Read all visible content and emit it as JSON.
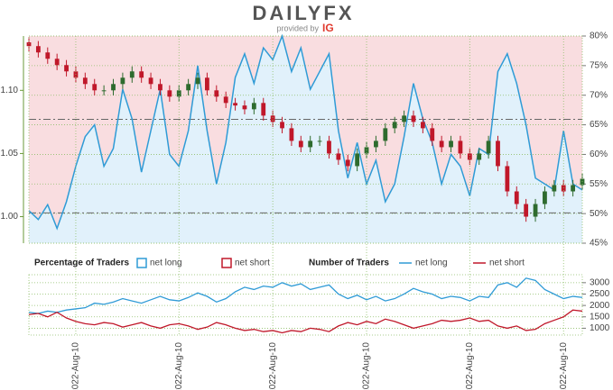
{
  "header": {
    "brand": "DAILYFX",
    "provided_by": "provided by",
    "ig": "IG"
  },
  "chart_data": [
    {
      "type": "candlestick",
      "x": [
        0,
        1,
        2,
        3,
        4,
        5,
        6,
        7,
        8,
        9,
        10,
        11,
        12,
        13,
        14,
        15,
        16,
        17,
        18,
        19,
        20,
        21,
        22,
        23,
        24,
        25,
        26,
        27,
        28,
        29,
        30,
        31,
        32,
        33,
        34,
        35,
        36,
        37,
        38,
        39,
        40,
        41,
        42,
        43,
        44,
        45,
        46,
        47,
        48,
        49,
        50,
        51,
        52,
        53,
        54,
        55,
        56,
        57,
        58,
        59
      ],
      "xlim": [
        0,
        59
      ],
      "ohlc": {
        "open": [
          1.138,
          1.135,
          1.13,
          1.125,
          1.12,
          1.115,
          1.11,
          1.105,
          1.1,
          1.1,
          1.105,
          1.11,
          1.115,
          1.11,
          1.105,
          1.1,
          1.095,
          1.1,
          1.105,
          1.11,
          1.1,
          1.095,
          1.09,
          1.088,
          1.085,
          1.09,
          1.08,
          1.075,
          1.07,
          1.06,
          1.055,
          1.06,
          1.06,
          1.05,
          1.045,
          1.04,
          1.05,
          1.055,
          1.06,
          1.07,
          1.075,
          1.08,
          1.075,
          1.07,
          1.06,
          1.055,
          1.06,
          1.05,
          1.045,
          1.05,
          1.06,
          1.04,
          1.02,
          1.01,
          1.0,
          1.01,
          1.02,
          1.025,
          1.02,
          1.025
        ],
        "high": [
          1.142,
          1.139,
          1.134,
          1.129,
          1.124,
          1.119,
          1.114,
          1.109,
          1.104,
          1.109,
          1.114,
          1.119,
          1.119,
          1.114,
          1.109,
          1.104,
          1.104,
          1.109,
          1.114,
          1.114,
          1.104,
          1.099,
          1.094,
          1.092,
          1.094,
          1.094,
          1.084,
          1.079,
          1.074,
          1.064,
          1.064,
          1.064,
          1.064,
          1.054,
          1.049,
          1.054,
          1.059,
          1.064,
          1.074,
          1.079,
          1.084,
          1.084,
          1.079,
          1.074,
          1.064,
          1.064,
          1.064,
          1.054,
          1.054,
          1.064,
          1.064,
          1.044,
          1.024,
          1.014,
          1.014,
          1.024,
          1.029,
          1.029,
          1.029,
          1.034
        ],
        "low": [
          1.131,
          1.126,
          1.121,
          1.116,
          1.111,
          1.106,
          1.101,
          1.096,
          1.096,
          1.096,
          1.101,
          1.106,
          1.106,
          1.101,
          1.096,
          1.091,
          1.091,
          1.096,
          1.101,
          1.096,
          1.091,
          1.086,
          1.084,
          1.081,
          1.081,
          1.076,
          1.071,
          1.066,
          1.056,
          1.051,
          1.051,
          1.056,
          1.046,
          1.041,
          1.036,
          1.036,
          1.046,
          1.051,
          1.056,
          1.066,
          1.071,
          1.071,
          1.066,
          1.056,
          1.051,
          1.051,
          1.046,
          1.041,
          1.041,
          1.046,
          1.036,
          1.016,
          1.006,
          0.996,
          0.996,
          1.006,
          1.016,
          1.016,
          1.016,
          1.021
        ],
        "close": [
          1.135,
          1.13,
          1.125,
          1.12,
          1.115,
          1.11,
          1.105,
          1.1,
          1.1,
          1.105,
          1.11,
          1.115,
          1.11,
          1.105,
          1.1,
          1.095,
          1.1,
          1.105,
          1.11,
          1.1,
          1.095,
          1.09,
          1.088,
          1.085,
          1.09,
          1.08,
          1.075,
          1.07,
          1.06,
          1.055,
          1.06,
          1.06,
          1.05,
          1.045,
          1.04,
          1.05,
          1.055,
          1.06,
          1.07,
          1.075,
          1.08,
          1.075,
          1.07,
          1.06,
          1.055,
          1.06,
          1.05,
          1.045,
          1.05,
          1.06,
          1.04,
          1.02,
          1.01,
          1.0,
          1.01,
          1.02,
          1.025,
          1.02,
          1.025,
          1.03
        ]
      },
      "up_color": "#2e6b2e",
      "down_color": "#c0182a",
      "ylim": [
        0.979,
        1.143
      ],
      "yticks": [
        {
          "value": 1,
          "label": "1.00"
        },
        1.05,
        {
          "value": 1.1,
          "label": "1.10"
        }
      ],
      "y2lim": [
        45,
        80
      ],
      "y2ticks": [
        {
          "value": 45,
          "label": "45%"
        },
        {
          "value": 50,
          "label": "50%"
        },
        {
          "value": 55,
          "label": "55%"
        },
        {
          "value": 60,
          "label": "60%"
        },
        {
          "value": 65,
          "label": "65%"
        },
        {
          "value": 70,
          "label": "70%"
        },
        {
          "value": 75,
          "label": "75%"
        },
        {
          "value": 80,
          "label": "80%"
        }
      ],
      "hlines": [
        1.003,
        1.077
      ],
      "legend_title": "Percentage of Traders",
      "series": [
        {
          "name": "net long",
          "color": "#2f9bd6",
          "fill": "#e1f1fb",
          "axis": "y2",
          "values": [
            50.5,
            49,
            51.5,
            47.5,
            52,
            58,
            63,
            65,
            58,
            61,
            71,
            66,
            57,
            64,
            71,
            60,
            58,
            64,
            75,
            64,
            55,
            62,
            73,
            77,
            72,
            78,
            76,
            80,
            74,
            78,
            71,
            74,
            77,
            64,
            56,
            62,
            55,
            59,
            52,
            55,
            63,
            72,
            66,
            62,
            55,
            60,
            58,
            53,
            61,
            60,
            74,
            77,
            72,
            65,
            56,
            55,
            54,
            64,
            55,
            54
          ]
        },
        {
          "name": "net short",
          "color": "#c0182a",
          "fill": "#f9dde0"
        }
      ],
      "grid": true
    },
    {
      "type": "line",
      "legend_title": "Number of Traders",
      "xlim": [
        0,
        59
      ],
      "xticks": [
        {
          "value": 5,
          "label": "2022-Aug-10"
        },
        {
          "value": 16,
          "label": "2022-Aug-10"
        },
        {
          "value": 26,
          "label": "2022-Aug-10"
        },
        {
          "value": 36,
          "label": "2022-Aug-10"
        },
        {
          "value": 47,
          "label": "2022-Aug-10"
        },
        {
          "value": 57,
          "label": "2022-Aug-10"
        }
      ],
      "ylim": [
        700,
        3350
      ],
      "yticks": [
        1000,
        1500,
        2000,
        2500,
        3000
      ],
      "series": [
        {
          "name": "net long",
          "color": "#2f9bd6",
          "values": [
            1700,
            1650,
            1750,
            1700,
            1800,
            1850,
            1900,
            2100,
            2050,
            2150,
            2300,
            2200,
            2100,
            2250,
            2400,
            2250,
            2200,
            2350,
            2550,
            2400,
            2150,
            2300,
            2600,
            2800,
            2700,
            2850,
            2800,
            3000,
            2850,
            2950,
            2700,
            2800,
            2900,
            2500,
            2300,
            2450,
            2250,
            2400,
            2200,
            2300,
            2500,
            2750,
            2600,
            2500,
            2300,
            2400,
            2350,
            2200,
            2400,
            2350,
            2900,
            3000,
            2800,
            3200,
            3100,
            2700,
            2500,
            2300,
            2400,
            2350
          ]
        },
        {
          "name": "net short",
          "color": "#c0182a",
          "values": [
            1600,
            1650,
            1500,
            1700,
            1450,
            1300,
            1200,
            1150,
            1250,
            1200,
            1050,
            1150,
            1250,
            1100,
            1000,
            1150,
            1200,
            1100,
            950,
            1050,
            1250,
            1150,
            1000,
            900,
            950,
            850,
            900,
            800,
            900,
            850,
            1000,
            950,
            850,
            1100,
            1250,
            1150,
            1300,
            1200,
            1400,
            1300,
            1150,
            1000,
            1100,
            1200,
            1350,
            1300,
            1350,
            1450,
            1300,
            1350,
            1100,
            1000,
            1100,
            900,
            950,
            1200,
            1350,
            1500,
            1800,
            1750
          ]
        }
      ],
      "grid": true
    }
  ]
}
